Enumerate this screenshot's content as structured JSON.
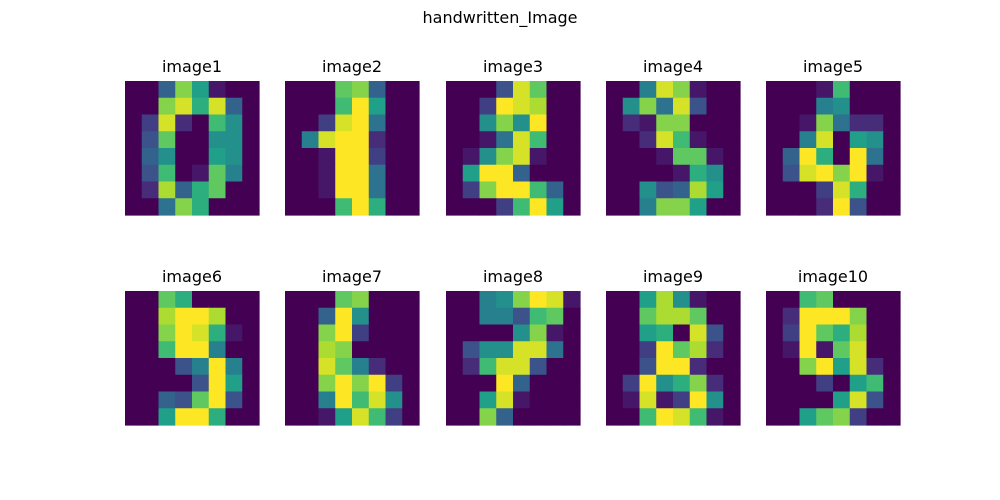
{
  "figure": {
    "title": "handwritten_Image"
  },
  "chart_data": {
    "type": "heatmap",
    "title": "handwritten_Image",
    "colormap": "viridis",
    "value_range": [
      0,
      16
    ],
    "grid": false,
    "axes_visible": false,
    "layout": "2 rows x 5 columns",
    "images": [
      {
        "title": "image1",
        "values": [
          [
            0,
            0,
            5,
            13,
            9,
            1,
            0,
            0
          ],
          [
            0,
            0,
            13,
            15,
            10,
            15,
            5,
            0
          ],
          [
            0,
            3,
            15,
            2,
            0,
            11,
            8,
            0
          ],
          [
            0,
            4,
            12,
            0,
            0,
            8,
            8,
            0
          ],
          [
            0,
            5,
            8,
            0,
            0,
            9,
            8,
            0
          ],
          [
            0,
            4,
            11,
            0,
            1,
            12,
            7,
            0
          ],
          [
            0,
            2,
            14,
            5,
            10,
            12,
            0,
            0
          ],
          [
            0,
            0,
            6,
            13,
            10,
            0,
            0,
            0
          ]
        ]
      },
      {
        "title": "image2",
        "values": [
          [
            0,
            0,
            0,
            12,
            13,
            5,
            0,
            0
          ],
          [
            0,
            0,
            0,
            11,
            16,
            9,
            0,
            0
          ],
          [
            0,
            0,
            3,
            15,
            16,
            6,
            0,
            0
          ],
          [
            0,
            7,
            15,
            16,
            16,
            2,
            0,
            0
          ],
          [
            0,
            0,
            1,
            16,
            16,
            3,
            0,
            0
          ],
          [
            0,
            0,
            1,
            16,
            16,
            6,
            0,
            0
          ],
          [
            0,
            0,
            1,
            16,
            16,
            6,
            0,
            0
          ],
          [
            0,
            0,
            0,
            11,
            16,
            10,
            0,
            0
          ]
        ]
      },
      {
        "title": "image3",
        "values": [
          [
            0,
            0,
            0,
            4,
            15,
            12,
            0,
            0
          ],
          [
            0,
            0,
            3,
            16,
            15,
            14,
            0,
            0
          ],
          [
            0,
            0,
            8,
            13,
            8,
            16,
            0,
            0
          ],
          [
            0,
            0,
            1,
            6,
            15,
            11,
            0,
            0
          ],
          [
            0,
            1,
            8,
            13,
            15,
            1,
            0,
            0
          ],
          [
            0,
            9,
            16,
            16,
            5,
            0,
            0,
            0
          ],
          [
            0,
            3,
            13,
            16,
            16,
            11,
            5,
            0
          ],
          [
            0,
            0,
            0,
            3,
            11,
            16,
            9,
            0
          ]
        ]
      },
      {
        "title": "image4",
        "values": [
          [
            0,
            0,
            7,
            15,
            13,
            1,
            0,
            0
          ],
          [
            0,
            8,
            13,
            6,
            15,
            4,
            0,
            0
          ],
          [
            0,
            2,
            1,
            13,
            13,
            0,
            0,
            0
          ],
          [
            0,
            0,
            2,
            15,
            11,
            1,
            0,
            0
          ],
          [
            0,
            0,
            0,
            1,
            12,
            12,
            1,
            0
          ],
          [
            0,
            0,
            0,
            0,
            1,
            10,
            8,
            0
          ],
          [
            0,
            0,
            8,
            4,
            5,
            14,
            9,
            0
          ],
          [
            0,
            0,
            7,
            13,
            13,
            9,
            0,
            0
          ]
        ]
      },
      {
        "title": "image5",
        "values": [
          [
            0,
            0,
            0,
            1,
            11,
            0,
            0,
            0
          ],
          [
            0,
            0,
            0,
            7,
            8,
            0,
            0,
            0
          ],
          [
            0,
            0,
            1,
            13,
            6,
            2,
            2,
            0
          ],
          [
            0,
            0,
            7,
            15,
            0,
            9,
            8,
            0
          ],
          [
            0,
            5,
            16,
            10,
            0,
            16,
            6,
            0
          ],
          [
            0,
            4,
            15,
            16,
            13,
            16,
            1,
            0
          ],
          [
            0,
            0,
            0,
            3,
            15,
            10,
            0,
            0
          ],
          [
            0,
            0,
            0,
            2,
            16,
            4,
            0,
            0
          ]
        ]
      },
      {
        "title": "image6",
        "values": [
          [
            0,
            0,
            12,
            10,
            0,
            0,
            0,
            0
          ],
          [
            0,
            0,
            14,
            16,
            16,
            14,
            0,
            0
          ],
          [
            0,
            0,
            13,
            16,
            15,
            10,
            1,
            0
          ],
          [
            0,
            0,
            11,
            16,
            16,
            7,
            0,
            0
          ],
          [
            0,
            0,
            0,
            4,
            7,
            16,
            7,
            0
          ],
          [
            0,
            0,
            0,
            0,
            4,
            16,
            9,
            0
          ],
          [
            0,
            0,
            5,
            4,
            12,
            16,
            4,
            0
          ],
          [
            0,
            0,
            9,
            16,
            16,
            10,
            0,
            0
          ]
        ]
      },
      {
        "title": "image7",
        "values": [
          [
            0,
            0,
            0,
            12,
            13,
            0,
            0,
            0
          ],
          [
            0,
            0,
            5,
            16,
            8,
            0,
            0,
            0
          ],
          [
            0,
            0,
            13,
            16,
            3,
            0,
            0,
            0
          ],
          [
            0,
            0,
            14,
            13,
            0,
            0,
            0,
            0
          ],
          [
            0,
            0,
            15,
            12,
            7,
            2,
            0,
            0
          ],
          [
            0,
            0,
            13,
            16,
            13,
            16,
            3,
            0
          ],
          [
            0,
            0,
            7,
            16,
            11,
            15,
            8,
            0
          ],
          [
            0,
            0,
            1,
            9,
            15,
            11,
            3,
            0
          ]
        ]
      },
      {
        "title": "image8",
        "values": [
          [
            0,
            0,
            7,
            8,
            13,
            16,
            15,
            1
          ],
          [
            0,
            0,
            7,
            7,
            4,
            11,
            12,
            0
          ],
          [
            0,
            0,
            0,
            0,
            8,
            13,
            1,
            0
          ],
          [
            0,
            4,
            8,
            8,
            15,
            15,
            6,
            0
          ],
          [
            0,
            2,
            11,
            15,
            15,
            4,
            0,
            0
          ],
          [
            0,
            0,
            0,
            16,
            5,
            0,
            0,
            0
          ],
          [
            0,
            0,
            9,
            15,
            1,
            0,
            0,
            0
          ],
          [
            0,
            0,
            13,
            5,
            0,
            0,
            0,
            0
          ]
        ]
      },
      {
        "title": "image9",
        "values": [
          [
            0,
            0,
            9,
            14,
            8,
            1,
            0,
            0
          ],
          [
            0,
            0,
            12,
            14,
            14,
            12,
            0,
            0
          ],
          [
            0,
            0,
            9,
            10,
            0,
            15,
            4,
            0
          ],
          [
            0,
            0,
            3,
            16,
            12,
            14,
            2,
            0
          ],
          [
            0,
            0,
            4,
            16,
            16,
            2,
            0,
            0
          ],
          [
            0,
            3,
            16,
            8,
            10,
            13,
            2,
            0
          ],
          [
            0,
            1,
            15,
            1,
            3,
            16,
            8,
            0
          ],
          [
            0,
            0,
            11,
            16,
            15,
            11,
            1,
            0
          ]
        ]
      },
      {
        "title": "image10",
        "values": [
          [
            0,
            0,
            11,
            12,
            0,
            0,
            0,
            0
          ],
          [
            0,
            2,
            16,
            16,
            16,
            13,
            0,
            0
          ],
          [
            0,
            3,
            16,
            12,
            10,
            14,
            0,
            0
          ],
          [
            0,
            1,
            16,
            1,
            12,
            15,
            0,
            0
          ],
          [
            0,
            0,
            13,
            16,
            9,
            15,
            2,
            0
          ],
          [
            0,
            0,
            0,
            3,
            0,
            9,
            11,
            0
          ],
          [
            0,
            0,
            0,
            0,
            9,
            15,
            4,
            0
          ],
          [
            0,
            0,
            9,
            12,
            13,
            3,
            0,
            0
          ]
        ]
      }
    ]
  }
}
